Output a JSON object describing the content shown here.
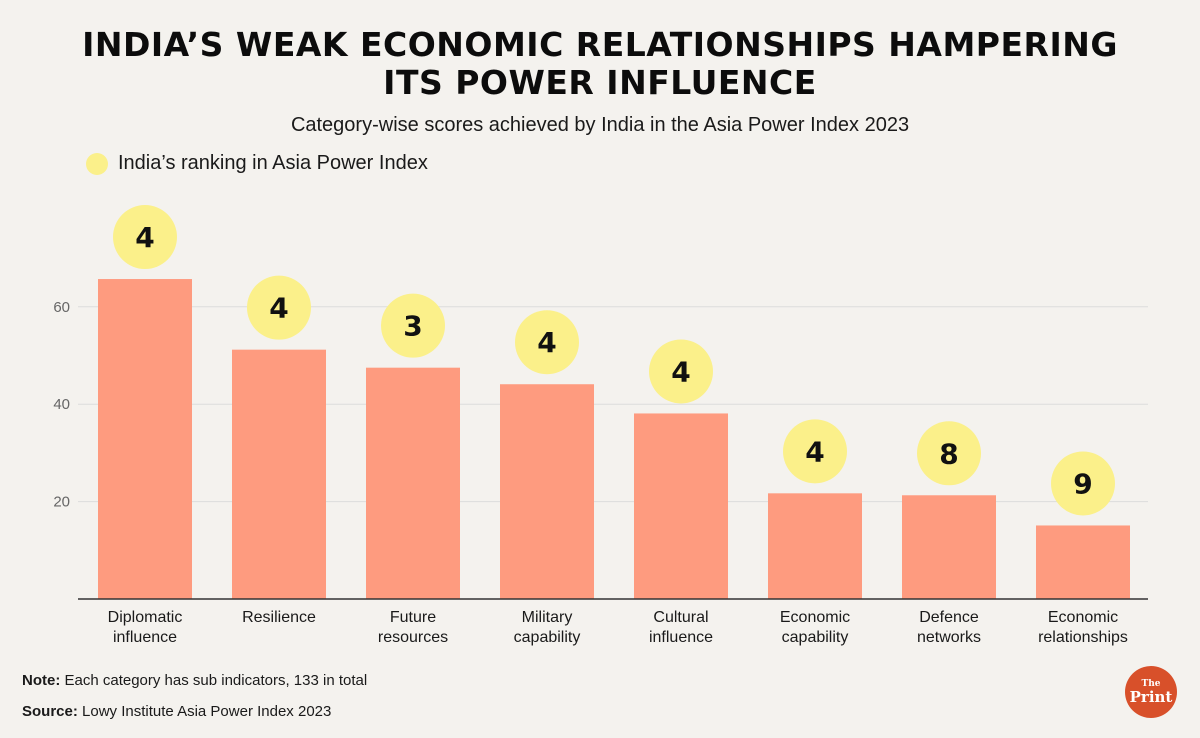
{
  "title_line1": "INDIA’S WEAK ECONOMIC RELATIONSHIPS HAMPERING",
  "title_line2": "ITS POWER INFLUENCE",
  "subtitle": "Category-wise scores achieved by India in the Asia Power Index 2023",
  "legend_label": "India’s ranking in Asia Power Index",
  "note_label": "Note:",
  "note_text": " Each category has sub indicators, 133 in total",
  "source_label": "Source:",
  "source_text": " Lowy Institute Asia Power Index 2023",
  "logo": {
    "the": "The",
    "print": "Print"
  },
  "colors": {
    "bar": "#fe9b7f",
    "bubble": "#fbf08a",
    "grid": "#dcdcdc",
    "axis": "#333333",
    "logo": "#d8502a"
  },
  "chart_data": {
    "type": "bar",
    "categories": [
      [
        "Diplomatic",
        "influence"
      ],
      [
        "Resilience"
      ],
      [
        "Future",
        "resources"
      ],
      [
        "Military",
        "capability"
      ],
      [
        "Cultural",
        "influence"
      ],
      [
        "Economic",
        "capability"
      ],
      [
        "Defence",
        "networks"
      ],
      [
        "Economic",
        "relationships"
      ]
    ],
    "values": [
      65.7,
      51.2,
      47.5,
      44.1,
      38.1,
      21.7,
      21.3,
      15.1
    ],
    "rankings": [
      "4",
      "4",
      "3",
      "4",
      "4",
      "4",
      "8",
      "9"
    ],
    "yticks": [
      20,
      40,
      60
    ],
    "ylim": [
      0,
      70
    ],
    "grid": true,
    "legend_position": "top-left"
  }
}
